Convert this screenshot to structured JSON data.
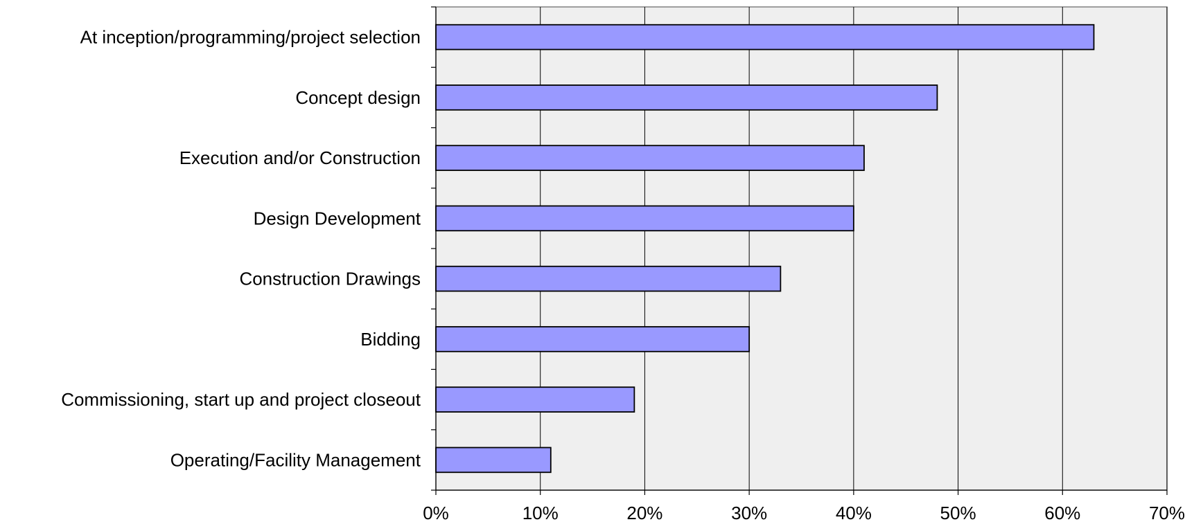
{
  "chart_data": {
    "type": "bar",
    "orientation": "horizontal",
    "title": "",
    "xlabel": "",
    "ylabel": "",
    "categories": [
      "At inception/programming/project selection",
      "Concept design",
      "Execution and/or Construction",
      "Design Development",
      "Construction Drawings",
      "Bidding",
      "Commissioning, start up and project closeout",
      "Operating/Facility Management"
    ],
    "values": [
      63,
      48,
      41,
      40,
      33,
      30,
      19,
      11
    ],
    "value_unit": "%",
    "xlim": [
      0,
      70
    ],
    "xticks": [
      "0%",
      "10%",
      "20%",
      "30%",
      "40%",
      "50%",
      "60%",
      "70%"
    ],
    "xtick_values": [
      0,
      10,
      20,
      30,
      40,
      50,
      60,
      70
    ],
    "grid": "vertical",
    "legend": "none",
    "colors": {
      "bar_fill": "#9999ff",
      "bar_stroke": "#000000",
      "plot_background": "#efefef",
      "gridline": "#000000"
    }
  }
}
